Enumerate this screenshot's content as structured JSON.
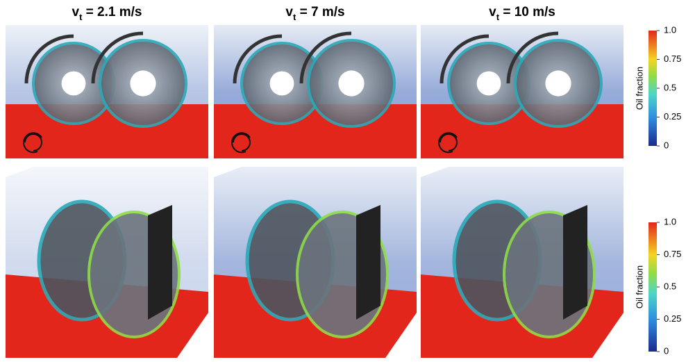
{
  "panels": {
    "titles": [
      {
        "var": "v",
        "sub": "t",
        "rest": " = 2.1 m/s"
      },
      {
        "var": "v",
        "sub": "t",
        "rest": " = 7 m/s"
      },
      {
        "var": "v",
        "sub": "t",
        "rest": " = 10 m/s"
      }
    ]
  },
  "colorbars": [
    {
      "label": "Oil fraction",
      "ticks": [
        {
          "value": 1,
          "label": "1.0"
        },
        0.75,
        0.5,
        0.25,
        0
      ]
    },
    {
      "label": "Oil fraction",
      "ticks": [
        {
          "value": 1,
          "label": "1.0"
        },
        0.75,
        0.5,
        0.25,
        0
      ]
    }
  ]
}
